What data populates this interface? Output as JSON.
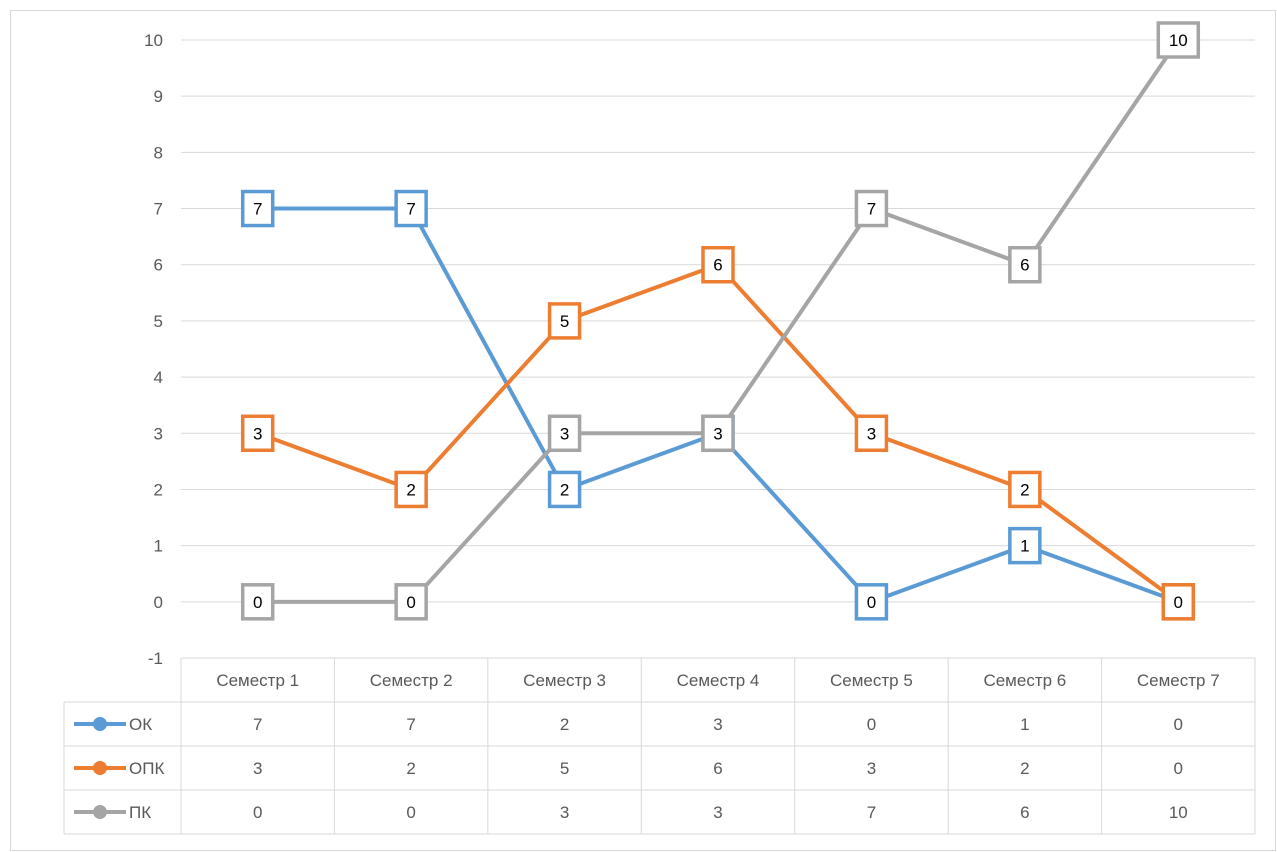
{
  "chart_data": {
    "type": "line",
    "title": "",
    "xlabel": "",
    "ylabel": "",
    "ylim": [
      -1,
      10
    ],
    "y_ticks": [
      "-1",
      "0",
      "1",
      "2",
      "3",
      "4",
      "5",
      "6",
      "7",
      "8",
      "9",
      "10"
    ],
    "grid": true,
    "legend": "data-table",
    "categories": [
      "Семестр 1",
      "Семестр 2",
      "Семестр 3",
      "Семестр 4",
      "Семестр 5",
      "Семестр 6",
      "Семестр 7"
    ],
    "series": [
      {
        "name": "ОК",
        "color": "#5b9bd5",
        "values": [
          7,
          7,
          2,
          3,
          0,
          1,
          0
        ]
      },
      {
        "name": "ОПК",
        "color": "#ed7d31",
        "values": [
          3,
          2,
          5,
          6,
          3,
          2,
          0
        ]
      },
      {
        "name": "ПК",
        "color": "#a5a5a5",
        "values": [
          0,
          0,
          3,
          3,
          7,
          6,
          10
        ]
      }
    ]
  }
}
